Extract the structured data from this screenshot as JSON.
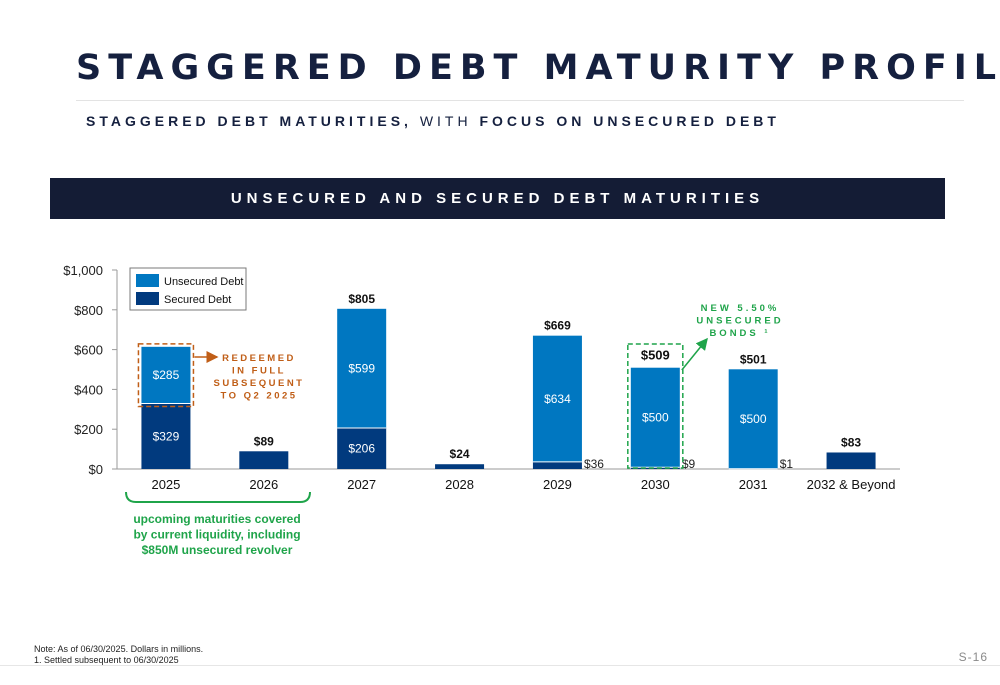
{
  "title": "STAGGERED DEBT MATURITY PROFILE",
  "subtitle": {
    "part1": "STAGGERED DEBT MATURITIES,",
    "part2": " WITH ",
    "part3": "FOCUS ON UNSECURED DEBT"
  },
  "banner": "UNSECURED AND SECURED DEBT MATURITIES",
  "callouts": {
    "redeemed": [
      "REDEEMED",
      "IN FULL",
      "SUBSEQUENT",
      "TO Q2 2025"
    ],
    "new_bonds": [
      "NEW 5.50%",
      "UNSECURED",
      "BONDS ¹"
    ],
    "liquidity": [
      "upcoming maturities covered",
      "by current liquidity, including",
      "$850M unsecured revolver"
    ]
  },
  "colors": {
    "unsecured": "#0077c1",
    "secured": "#013a7e",
    "banner": "#141c35",
    "redeemed_orange": "#c05e17",
    "green": "#1fa44a"
  },
  "footnote": {
    "line1": "Note: As of 06/30/2025. Dollars in millions.",
    "line2": "1. Settled subsequent to 06/30/2025"
  },
  "page_number": "S-16",
  "chart_data": {
    "type": "bar",
    "stacked": true,
    "categories": [
      "2025",
      "2026",
      "2027",
      "2028",
      "2029",
      "2030",
      "2031",
      "2032 & Beyond"
    ],
    "series": [
      {
        "name": "Secured Debt",
        "values": [
          329,
          89,
          206,
          24,
          36,
          9,
          1,
          83
        ],
        "labels": [
          "$329",
          "$89",
          "$206",
          "$24",
          "$36",
          "$9",
          "$1",
          "$83"
        ]
      },
      {
        "name": "Unsecured Debt",
        "values": [
          285,
          0,
          599,
          0,
          634,
          500,
          500,
          0
        ],
        "labels": [
          "$285",
          "",
          "$599",
          "",
          "$634",
          "$500",
          "$500",
          ""
        ]
      }
    ],
    "totals": [
      "",
      "",
      "$805",
      "",
      "$669",
      "$509",
      "$501",
      ""
    ],
    "yticks": [
      "$0",
      "$200",
      "$400",
      "$600",
      "$800",
      "$1,000"
    ],
    "ylim": [
      0,
      1000
    ],
    "legend": [
      "Unsecured Debt",
      "Secured Debt"
    ],
    "legend_position": "top-left"
  }
}
